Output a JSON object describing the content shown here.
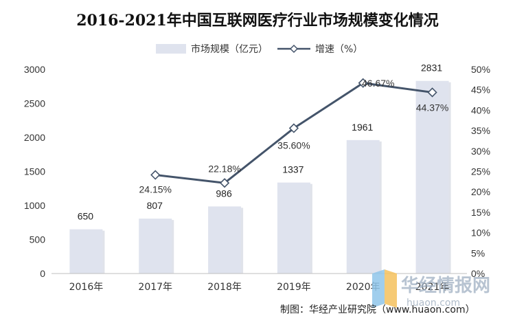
{
  "chart_data": {
    "type": "bar",
    "title": "2016-2021年中国互联网医疗行业市场规模变化情况",
    "categories": [
      "2016年",
      "2017年",
      "2018年",
      "2019年",
      "2020年",
      "2021年"
    ],
    "series": [
      {
        "name": "市场规模（亿元）",
        "type": "bar",
        "axis": "left",
        "values": [
          650,
          807,
          986,
          1337,
          1961,
          2831
        ],
        "labels": [
          "650",
          "807",
          "986",
          "1337",
          "1961",
          "2831"
        ],
        "color": "#dfe3ee"
      },
      {
        "name": "增速（%）",
        "type": "line",
        "axis": "right",
        "values": [
          null,
          24.15,
          22.18,
          35.6,
          46.67,
          44.37
        ],
        "labels": [
          "",
          "24.15%",
          "22.18%",
          "35.60%",
          "46.67%",
          "44.37%"
        ],
        "color": "#44546a"
      }
    ],
    "ylim_left": [
      0,
      3000
    ],
    "yticks_left": [
      "0",
      "500",
      "1000",
      "1500",
      "2000",
      "2500",
      "3000"
    ],
    "ylim_right": [
      0,
      50
    ],
    "yticks_right": [
      "0%",
      "5%",
      "10%",
      "15%",
      "20%",
      "25%",
      "30%",
      "35%",
      "40%",
      "45%",
      "50%"
    ],
    "grid": false,
    "legend_position": "top"
  },
  "source_note": "制图：华经产业研究院（www.huaon.com）",
  "watermark": {
    "text": "华经情报网",
    "url": "huaon.com"
  }
}
